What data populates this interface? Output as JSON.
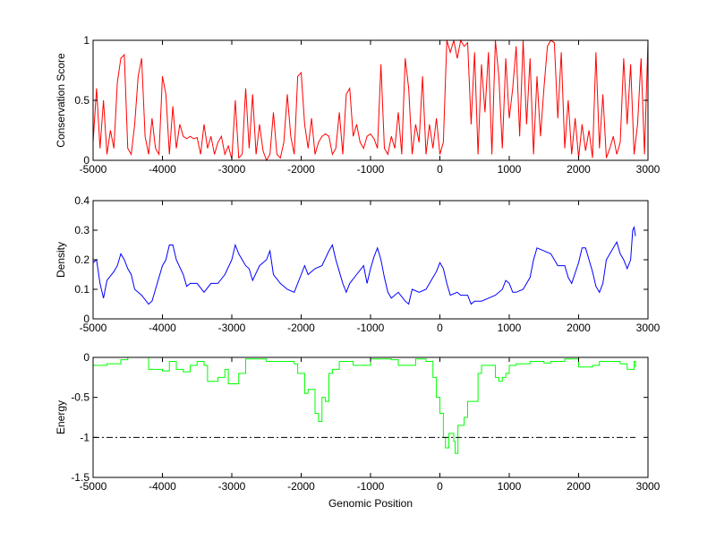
{
  "chart_data": [
    {
      "type": "line",
      "title": "",
      "xlabel": "",
      "ylabel": "Conservation Score",
      "xlim": [
        -5000,
        3000
      ],
      "ylim": [
        0,
        1
      ],
      "xticks": [
        "-5000",
        "-4000",
        "-3000",
        "-2000",
        "-1000",
        "0",
        "1000",
        "2000",
        "3000"
      ],
      "yticks": [
        "0",
        "0.5",
        "1"
      ],
      "color": "#ff0000",
      "step": 50,
      "x_start": -5000,
      "values": [
        0.15,
        0.6,
        0.1,
        0.5,
        0.05,
        0.25,
        0.1,
        0.65,
        0.85,
        0.88,
        0.1,
        0.05,
        0.3,
        0.7,
        0.85,
        0.2,
        0.05,
        0.35,
        0.1,
        0.05,
        0.7,
        0.55,
        0.05,
        0.45,
        0.1,
        0.3,
        0.2,
        0.18,
        0.2,
        0.18,
        0.19,
        0.05,
        0.3,
        0.1,
        0.2,
        0.05,
        0.15,
        0.2,
        0.05,
        0.12,
        0.01,
        0.5,
        0.02,
        0.05,
        0.6,
        0.1,
        0.55,
        0.05,
        0.3,
        0.08,
        0.0,
        0.05,
        0.4,
        0.05,
        0.02,
        0.15,
        0.55,
        0.2,
        0.05,
        0.7,
        0.73,
        0.3,
        0.1,
        0.35,
        0.05,
        0.15,
        0.2,
        0.22,
        0.2,
        0.05,
        0.1,
        0.4,
        0.05,
        0.55,
        0.6,
        0.2,
        0.3,
        0.15,
        0.1,
        0.2,
        0.22,
        0.18,
        0.1,
        0.8,
        0.1,
        0.05,
        0.2,
        0.1,
        0.4,
        0.05,
        0.85,
        0.6,
        0.05,
        0.3,
        0.15,
        0.7,
        0.05,
        0.3,
        0.1,
        0.35,
        0.05,
        0.15,
        1.0,
        0.9,
        1.0,
        0.85,
        1.0,
        0.95,
        0.98,
        0.3,
        0.9,
        0.05,
        0.8,
        0.4,
        0.9,
        0.05,
        1.0,
        0.7,
        0.1,
        0.85,
        0.35,
        0.6,
        0.95,
        0.2,
        1.0,
        0.3,
        0.85,
        0.05,
        0.7,
        0.2,
        0.6,
        0.95,
        1.0,
        0.98,
        0.35,
        0.9,
        0.1,
        0.5,
        0.05,
        0.35,
        0.02,
        0.3,
        0.08,
        0.25,
        0.02,
        0.9,
        0.1,
        0.55,
        0.02,
        0.1,
        0.2,
        0.05,
        0.15,
        0.85,
        0.3,
        0.8,
        0.05,
        0.3,
        0.85,
        0.05,
        1.0
      ]
    },
    {
      "type": "line",
      "title": "",
      "xlabel": "",
      "ylabel": "Density",
      "xlim": [
        -5000,
        3000
      ],
      "ylim": [
        0,
        0.4
      ],
      "xticks": [
        "-5000",
        "-4000",
        "-3000",
        "-2000",
        "-1000",
        "0",
        "1000",
        "2000",
        "3000"
      ],
      "yticks": [
        "0",
        "0.1",
        "0.2",
        "0.3",
        "0.4"
      ],
      "color": "#0000ff",
      "x": [
        -5000,
        -4950,
        -4900,
        -4850,
        -4800,
        -4700,
        -4650,
        -4600,
        -4550,
        -4500,
        -4450,
        -4400,
        -4300,
        -4200,
        -4150,
        -4100,
        -4000,
        -3950,
        -3900,
        -3850,
        -3800,
        -3700,
        -3650,
        -3600,
        -3500,
        -3400,
        -3300,
        -3200,
        -3100,
        -3000,
        -2950,
        -2900,
        -2800,
        -2750,
        -2700,
        -2600,
        -2500,
        -2450,
        -2400,
        -2300,
        -2200,
        -2100,
        -2000,
        -1950,
        -1900,
        -1800,
        -1700,
        -1600,
        -1550,
        -1500,
        -1450,
        -1400,
        -1350,
        -1300,
        -1200,
        -1100,
        -1050,
        -1000,
        -950,
        -900,
        -850,
        -800,
        -750,
        -700,
        -600,
        -500,
        -450,
        -400,
        -300,
        -200,
        -100,
        -50,
        0,
        50,
        100,
        150,
        250,
        300,
        400,
        450,
        500,
        600,
        700,
        800,
        900,
        950,
        1000,
        1050,
        1100,
        1200,
        1300,
        1350,
        1400,
        1500,
        1600,
        1700,
        1800,
        1850,
        1900,
        2000,
        2050,
        2100,
        2150,
        2200,
        2250,
        2300,
        2350,
        2400,
        2500,
        2550,
        2600,
        2650,
        2700,
        2750,
        2780,
        2800,
        2820
      ],
      "values": [
        0.19,
        0.2,
        0.12,
        0.07,
        0.13,
        0.16,
        0.18,
        0.22,
        0.2,
        0.17,
        0.15,
        0.1,
        0.08,
        0.05,
        0.06,
        0.1,
        0.18,
        0.2,
        0.25,
        0.25,
        0.2,
        0.15,
        0.11,
        0.12,
        0.12,
        0.09,
        0.12,
        0.12,
        0.15,
        0.2,
        0.25,
        0.22,
        0.18,
        0.17,
        0.13,
        0.18,
        0.2,
        0.23,
        0.15,
        0.12,
        0.1,
        0.09,
        0.15,
        0.18,
        0.15,
        0.17,
        0.18,
        0.23,
        0.25,
        0.2,
        0.16,
        0.12,
        0.09,
        0.12,
        0.15,
        0.18,
        0.12,
        0.17,
        0.21,
        0.24,
        0.2,
        0.14,
        0.09,
        0.07,
        0.09,
        0.06,
        0.05,
        0.1,
        0.09,
        0.1,
        0.14,
        0.16,
        0.19,
        0.17,
        0.12,
        0.08,
        0.09,
        0.08,
        0.08,
        0.05,
        0.06,
        0.06,
        0.07,
        0.08,
        0.1,
        0.13,
        0.12,
        0.09,
        0.09,
        0.1,
        0.14,
        0.2,
        0.24,
        0.23,
        0.22,
        0.18,
        0.18,
        0.14,
        0.12,
        0.19,
        0.24,
        0.24,
        0.2,
        0.16,
        0.11,
        0.09,
        0.12,
        0.2,
        0.24,
        0.26,
        0.22,
        0.2,
        0.17,
        0.2,
        0.3,
        0.31,
        0.28
      ]
    },
    {
      "type": "line",
      "title": "",
      "xlabel": "Genomic Position",
      "ylabel": "Energy",
      "xlim": [
        -5000,
        3000
      ],
      "ylim": [
        -1.5,
        0
      ],
      "xticks": [
        "-5000",
        "-4000",
        "-3000",
        "-2000",
        "-1000",
        "0",
        "1000",
        "2000",
        "3000"
      ],
      "yticks": [
        "-1.5",
        "-1",
        "-0.5",
        "0"
      ],
      "color": "#00ff00",
      "threshold": {
        "value": -1,
        "color": "#000000",
        "style": "dash-dot"
      },
      "x": [
        -5000,
        -4800,
        -4600,
        -4500,
        -4300,
        -4200,
        -4000,
        -3900,
        -3800,
        -3700,
        -3600,
        -3500,
        -3400,
        -3350,
        -3200,
        -3100,
        -3050,
        -2950,
        -2900,
        -2800,
        -2700,
        -2500,
        -2300,
        -2100,
        -2050,
        -1950,
        -1900,
        -1800,
        -1750,
        -1700,
        -1650,
        -1600,
        -1550,
        -1450,
        -1300,
        -1250,
        -1100,
        -1000,
        -700,
        -600,
        -400,
        -350,
        -200,
        -100,
        -50,
        0,
        50,
        80,
        130,
        200,
        220,
        260,
        350,
        400,
        470,
        550,
        600,
        700,
        800,
        850,
        900,
        950,
        1000,
        1100,
        1300,
        1500,
        1600,
        1800,
        2000,
        2200,
        2300,
        2500,
        2600,
        2700,
        2800,
        2820
      ],
      "values": [
        -0.1,
        -0.08,
        -0.03,
        0,
        0,
        -0.15,
        -0.17,
        -0.05,
        -0.15,
        -0.18,
        -0.1,
        -0.05,
        -0.1,
        -0.3,
        -0.25,
        -0.15,
        -0.33,
        -0.33,
        -0.2,
        -0.02,
        -0.02,
        -0.05,
        -0.05,
        -0.08,
        -0.2,
        -0.45,
        -0.4,
        -0.7,
        -0.8,
        -0.5,
        -0.55,
        -0.2,
        -0.15,
        -0.05,
        -0.05,
        -0.1,
        -0.1,
        -0.02,
        -0.03,
        -0.1,
        -0.1,
        -0.02,
        -0.05,
        -0.25,
        -0.5,
        -0.7,
        -1.0,
        -1.13,
        -0.95,
        -1.05,
        -1.2,
        -0.85,
        -0.75,
        -0.55,
        -0.55,
        -0.2,
        -0.1,
        -0.1,
        -0.25,
        -0.3,
        -0.25,
        -0.2,
        -0.1,
        -0.08,
        -0.05,
        -0.07,
        -0.05,
        -0.02,
        -0.12,
        -0.1,
        -0.05,
        -0.05,
        -0.08,
        -0.15,
        -0.05,
        -0.12
      ]
    }
  ]
}
